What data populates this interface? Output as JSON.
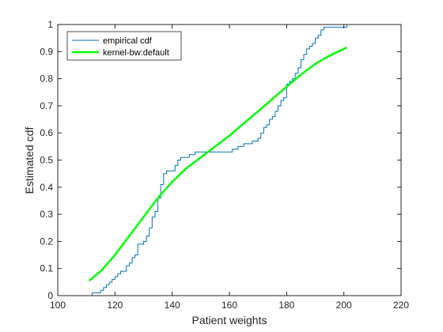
{
  "chart_data": {
    "type": "line",
    "xlabel": "Patient weights",
    "ylabel": "Estimated cdf",
    "xlim": [
      100,
      220
    ],
    "ylim": [
      0,
      1
    ],
    "xticks": [
      100,
      120,
      140,
      160,
      180,
      200,
      220
    ],
    "yticks": [
      0,
      0.1,
      0.2,
      0.3,
      0.4,
      0.5,
      0.6,
      0.7,
      0.8,
      0.9,
      1
    ],
    "grid": false,
    "legend_position": "top-left",
    "series": [
      {
        "name": "empirical cdf",
        "style": "stairs",
        "color": "#0072BD",
        "x": [
          111,
          112,
          115,
          116,
          117,
          118,
          119,
          120,
          121,
          122,
          124,
          125,
          126,
          127,
          128,
          130,
          131,
          132,
          133,
          134,
          135,
          136,
          137,
          138,
          140,
          141,
          142,
          143,
          145,
          146,
          147,
          148,
          150,
          155,
          160,
          161,
          162,
          163,
          164,
          165,
          166,
          168,
          169,
          170,
          171,
          172,
          173,
          174,
          175,
          176,
          177,
          178,
          179,
          180,
          181,
          182,
          183,
          184,
          185,
          186,
          187,
          188,
          189,
          190,
          191,
          192,
          193,
          194,
          195,
          201,
          202
        ],
        "y": [
          0,
          0.01,
          0.02,
          0.03,
          0.04,
          0.05,
          0.06,
          0.07,
          0.08,
          0.09,
          0.11,
          0.12,
          0.14,
          0.15,
          0.19,
          0.2,
          0.22,
          0.25,
          0.29,
          0.31,
          0.36,
          0.41,
          0.45,
          0.46,
          0.46,
          0.48,
          0.5,
          0.51,
          0.51,
          0.52,
          0.52,
          0.53,
          0.53,
          0.53,
          0.53,
          0.54,
          0.54,
          0.55,
          0.55,
          0.56,
          0.56,
          0.57,
          0.57,
          0.58,
          0.6,
          0.62,
          0.63,
          0.65,
          0.66,
          0.68,
          0.7,
          0.72,
          0.73,
          0.78,
          0.79,
          0.8,
          0.82,
          0.84,
          0.87,
          0.89,
          0.91,
          0.92,
          0.93,
          0.95,
          0.96,
          0.98,
          0.99,
          0.99,
          0.99,
          1,
          1
        ]
      },
      {
        "name": "kernel-bw:default",
        "style": "smooth",
        "color": "#00FF00",
        "x": [
          111,
          115,
          120,
          125,
          130,
          135,
          140,
          145,
          150,
          155,
          160,
          165,
          170,
          175,
          180,
          185,
          190,
          195,
          201
        ],
        "y": [
          0.055,
          0.09,
          0.15,
          0.22,
          0.29,
          0.36,
          0.42,
          0.47,
          0.51,
          0.55,
          0.59,
          0.635,
          0.68,
          0.725,
          0.77,
          0.815,
          0.855,
          0.885,
          0.915
        ]
      }
    ]
  }
}
